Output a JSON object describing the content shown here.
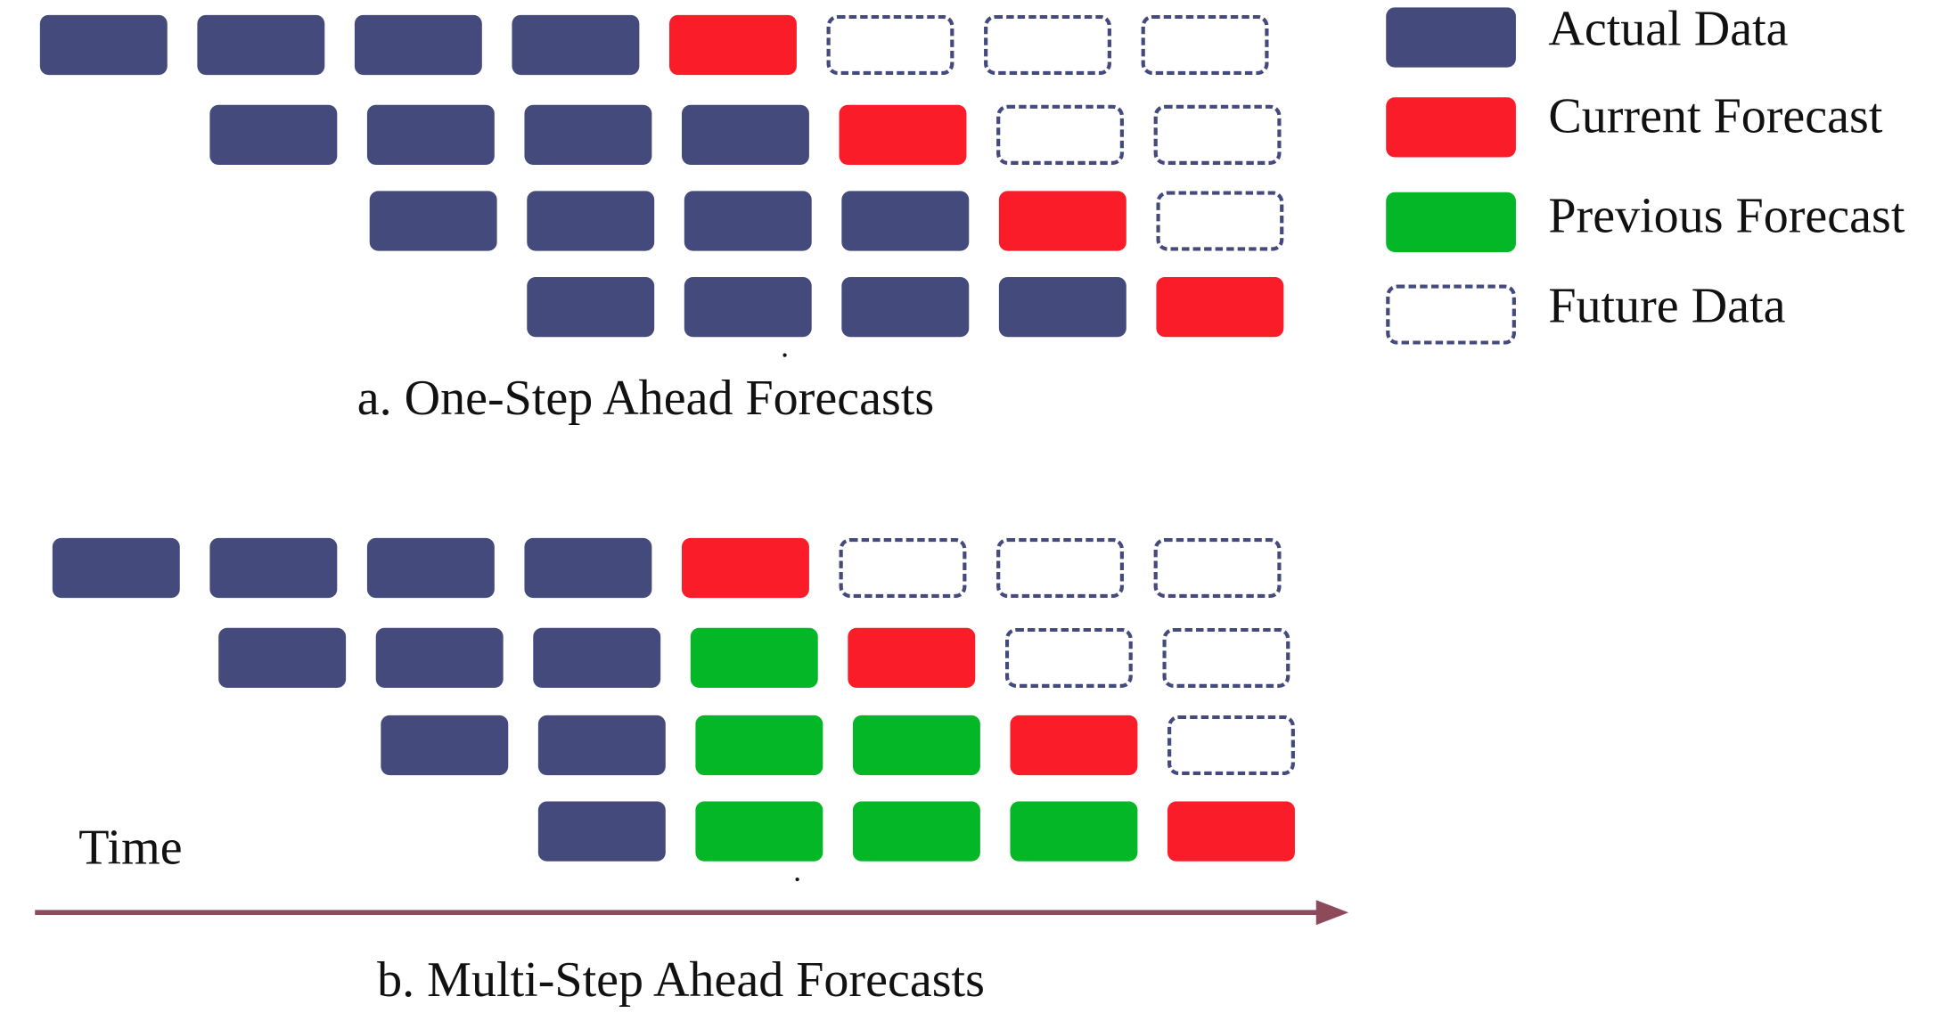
{
  "legend": {
    "actual": "Actual Data",
    "current": "Current Forecast",
    "previous": "Previous Forecast",
    "future": "Future Data"
  },
  "panel_a": {
    "caption": "a. One-Step Ahead Forecasts",
    "rows": [
      [
        "actual",
        "actual",
        "actual",
        "actual",
        "current",
        "future",
        "future",
        "future"
      ],
      [
        "actual",
        "actual",
        "actual",
        "actual",
        "current",
        "future",
        "future"
      ],
      [
        "actual",
        "actual",
        "actual",
        "actual",
        "current",
        "future"
      ],
      [
        "actual",
        "actual",
        "actual",
        "actual",
        "current"
      ]
    ]
  },
  "panel_b": {
    "caption": "b. Multi-Step Ahead Forecasts",
    "rows": [
      [
        "actual",
        "actual",
        "actual",
        "actual",
        "current",
        "future",
        "future",
        "future"
      ],
      [
        "actual",
        "actual",
        "actual",
        "previous",
        "current",
        "future",
        "future"
      ],
      [
        "actual",
        "actual",
        "previous",
        "previous",
        "current",
        "future"
      ],
      [
        "actual",
        "previous",
        "previous",
        "previous",
        "current"
      ]
    ]
  },
  "time_axis": {
    "label": "Time"
  },
  "colors": {
    "actual": "#454a7d",
    "current": "#fa1d29",
    "previous": "#03b726",
    "future_border": "#454a7d",
    "arrow": "#8c4a5a"
  }
}
